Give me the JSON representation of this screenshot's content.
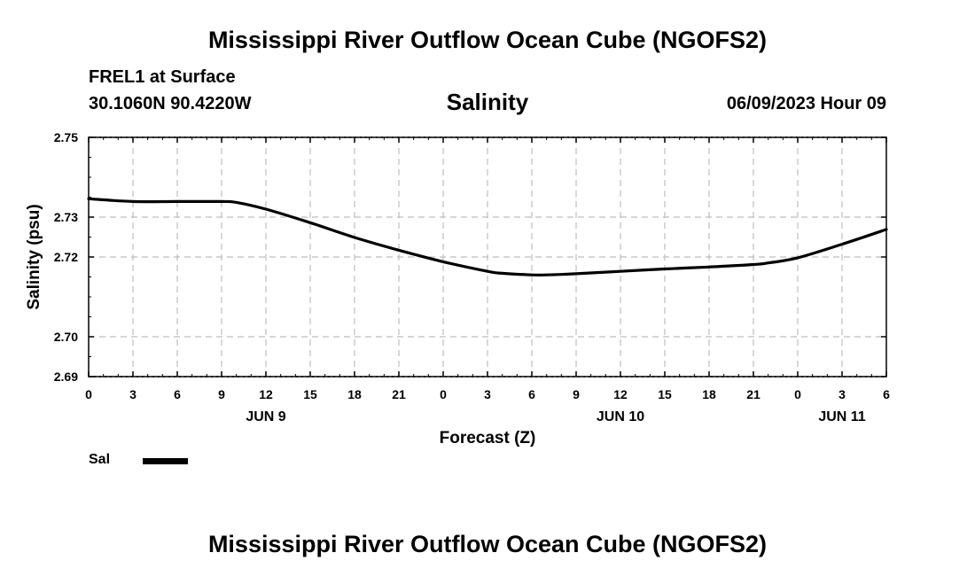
{
  "header": {
    "main_title": "Mississippi River Outflow Ocean Cube (NGOFS2)",
    "station": "FREL1 at Surface",
    "coords": "30.1060N  90.4220W",
    "chart_title": "Salinity",
    "date": "06/09/2023 Hour 09"
  },
  "footer": {
    "title": "Mississippi River Outflow Ocean Cube (NGOFS2)"
  },
  "legend": {
    "label": "Sal",
    "color": "#000000"
  },
  "chart_data": {
    "type": "line",
    "title": "Salinity",
    "xlabel": "Forecast (Z)",
    "ylabel": "Salinity (psu)",
    "xlim": [
      0,
      54
    ],
    "ylim": [
      2.69,
      2.75
    ],
    "x_ticks": [
      0,
      3,
      6,
      9,
      12,
      15,
      18,
      21,
      24,
      27,
      30,
      33,
      36,
      39,
      42,
      45,
      48,
      51,
      54
    ],
    "x_tick_labels": [
      "0",
      "3",
      "6",
      "9",
      "12",
      "15",
      "18",
      "21",
      "0",
      "3",
      "6",
      "9",
      "12",
      "15",
      "18",
      "21",
      "0",
      "3",
      "6"
    ],
    "y_ticks": [
      2.69,
      2.7,
      2.72,
      2.73,
      2.75
    ],
    "y_tick_labels": [
      "2.69",
      "2.70",
      "2.72",
      "2.73",
      "2.75"
    ],
    "day_labels": [
      {
        "x": 12,
        "label": "JUN 9"
      },
      {
        "x": 36,
        "label": "JUN 10"
      },
      {
        "x": 51,
        "label": "JUN 11"
      }
    ],
    "grid": true,
    "series": [
      {
        "name": "Sal",
        "color": "#000000",
        "x": [
          0,
          3,
          6,
          9,
          10,
          12,
          15,
          18,
          21,
          24,
          27,
          28,
          30,
          31,
          33,
          36,
          39,
          42,
          45,
          46,
          48,
          51,
          54
        ],
        "y": [
          2.7346,
          2.7339,
          2.7339,
          2.7339,
          2.7337,
          2.732,
          2.7286,
          2.7249,
          2.7217,
          2.7188,
          2.7164,
          2.7159,
          2.7155,
          2.7155,
          2.7158,
          2.7164,
          2.717,
          2.7175,
          2.7181,
          2.7185,
          2.7198,
          2.7232,
          2.7269
        ]
      }
    ]
  }
}
